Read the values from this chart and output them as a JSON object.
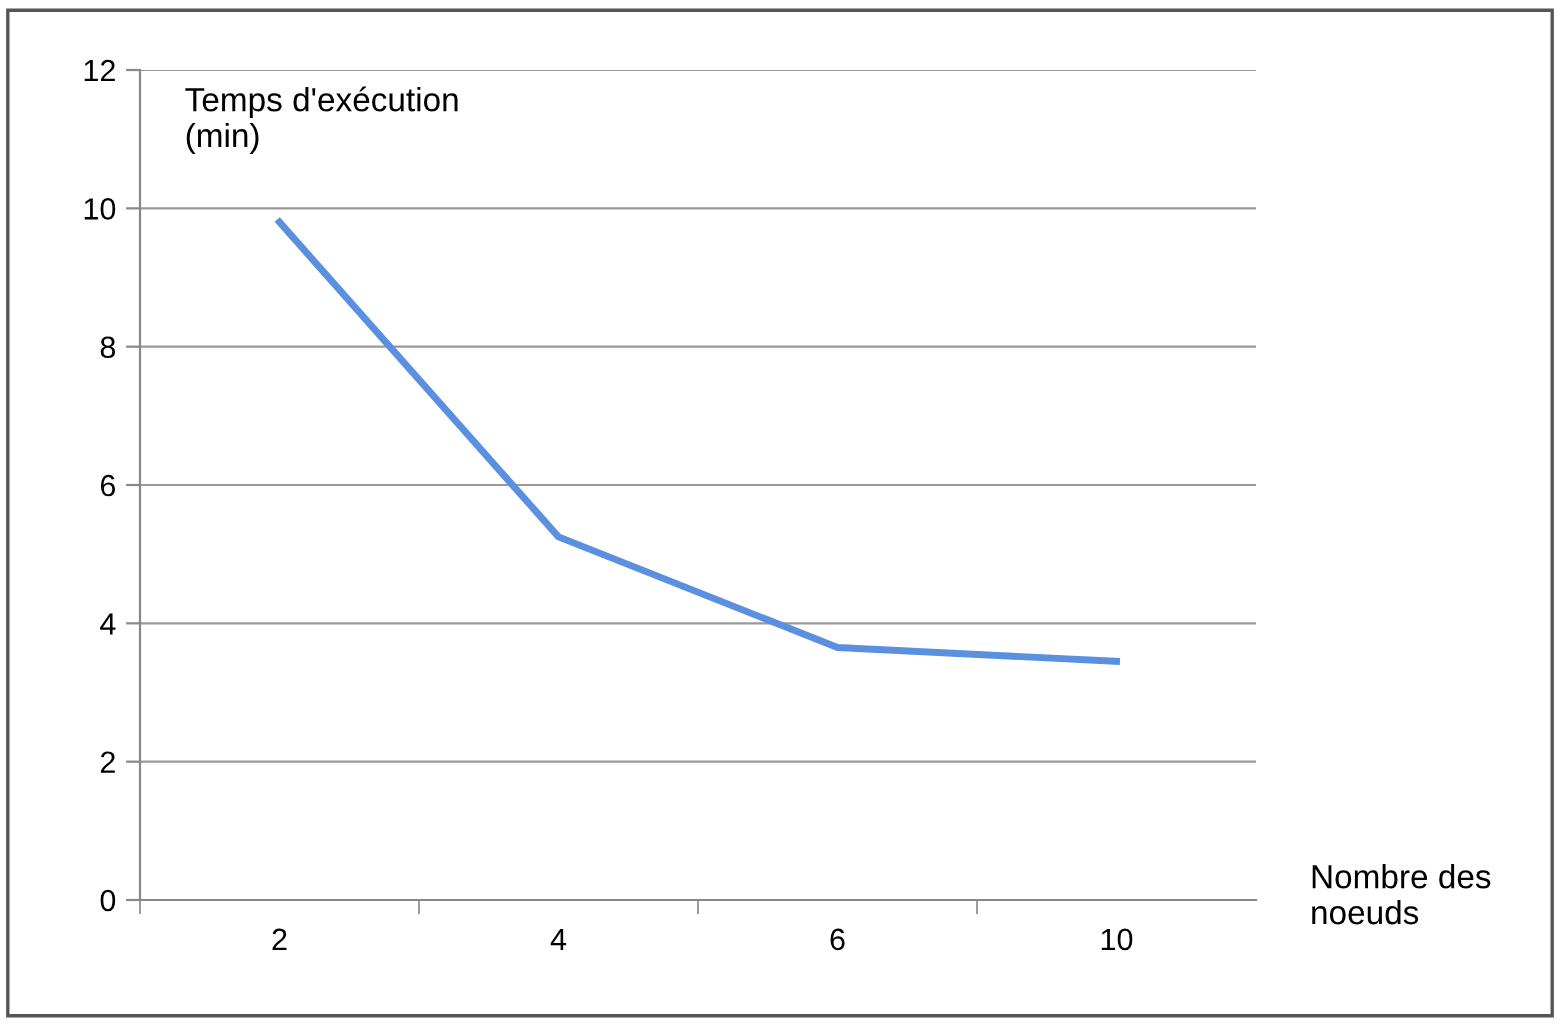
{
  "chart_data": {
    "type": "line",
    "categories": [
      "2",
      "4",
      "6",
      "10"
    ],
    "series": [
      {
        "color": "#5b8fe0",
        "values": [
          9.8,
          5.25,
          3.65,
          3.45
        ]
      }
    ],
    "ylim": [
      0,
      12
    ],
    "yticks": [
      0,
      2,
      4,
      6,
      8,
      10,
      12
    ],
    "grid": "y",
    "marker": "none",
    "line_style": "solid",
    "ylabel": "Temps d'exécution\n(min)",
    "xlabel": "Nombre des\nnoeuds"
  }
}
